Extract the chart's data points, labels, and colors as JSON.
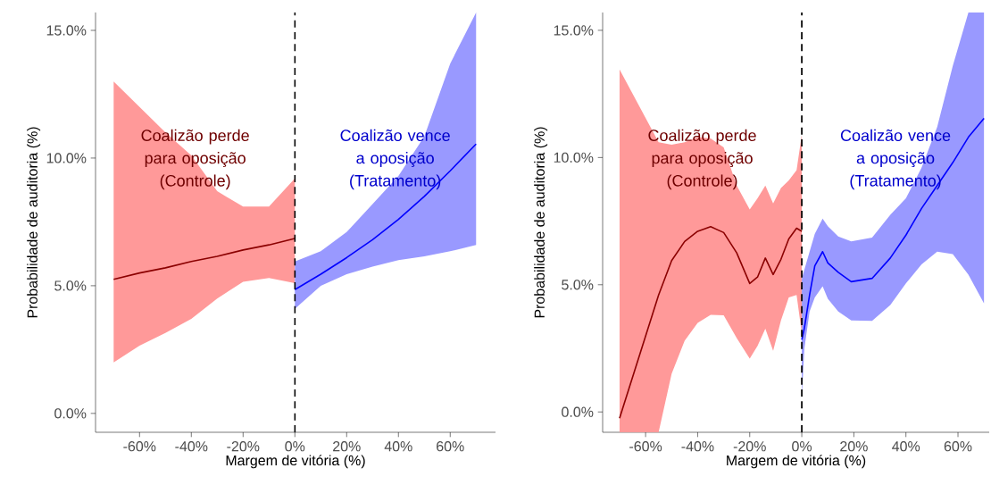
{
  "chart_data": [
    {
      "type": "line",
      "xlabel": "Margem de vitória (%)",
      "ylabel": "Probabilidade de auditoria (%)",
      "xlim": [
        -77,
        77.5
      ],
      "ylim": [
        -0.74,
        15.7
      ],
      "xticks": [
        {
          "value": -60,
          "label": "-60%"
        },
        {
          "value": -40,
          "label": "-40%"
        },
        {
          "value": -20,
          "label": "-20%"
        },
        {
          "value": 0,
          "label": "0%"
        },
        {
          "value": 20,
          "label": "20%"
        },
        {
          "value": 40,
          "label": "40%"
        },
        {
          "value": 60,
          "label": "60%"
        }
      ],
      "yticks": [
        {
          "value": 0,
          "label": "0.0%"
        },
        {
          "value": 5,
          "label": "5.0%"
        },
        {
          "value": 10,
          "label": "10.0%"
        },
        {
          "value": 15,
          "label": "15.0%"
        }
      ],
      "annotations": [
        "Coalizão perde para oposição (Controle)",
        "Coalizão vence a oposição (Tratamento)"
      ],
      "ref_lines": [
        {
          "axis": "x",
          "value": 0,
          "color": "#000000",
          "line_style": "dashed"
        }
      ],
      "series": [
        {
          "color": "#8b0000",
          "x": [
            -70,
            -60,
            -50,
            -40,
            -30,
            -20,
            -10,
            0
          ],
          "values": [
            5.25,
            5.5,
            5.7,
            5.95,
            6.15,
            6.4,
            6.6,
            6.85
          ],
          "upper": [
            13.0,
            12.0,
            11.0,
            10.1,
            8.7,
            8.1,
            8.1,
            9.2
          ],
          "lower": [
            2.0,
            2.65,
            3.15,
            3.7,
            4.5,
            5.15,
            5.3,
            5.1
          ]
        },
        {
          "color": "#0000ff",
          "x": [
            0,
            10,
            20,
            30,
            40,
            50,
            60,
            70
          ],
          "values": [
            4.85,
            5.45,
            6.1,
            6.8,
            7.6,
            8.5,
            9.5,
            10.55
          ],
          "upper": [
            5.95,
            6.35,
            7.1,
            8.2,
            9.3,
            10.85,
            13.7,
            15.7
          ],
          "lower": [
            4.1,
            5.0,
            5.45,
            5.75,
            6.0,
            6.15,
            6.35,
            6.6
          ]
        }
      ]
    },
    {
      "type": "line",
      "xlabel": "Margem de vitória (%)",
      "ylabel": "Probabilidade de auditoria (%)",
      "xlim": [
        -76.5,
        72
      ],
      "ylim": [
        -0.8,
        15.7
      ],
      "xticks": [
        {
          "value": -60,
          "label": "-60%"
        },
        {
          "value": -40,
          "label": "-40%"
        },
        {
          "value": -20,
          "label": "-20%"
        },
        {
          "value": 0,
          "label": "0%"
        },
        {
          "value": 20,
          "label": "20%"
        },
        {
          "value": 40,
          "label": "40%"
        },
        {
          "value": 60,
          "label": "60%"
        }
      ],
      "yticks": [
        {
          "value": 0,
          "label": "0.0%"
        },
        {
          "value": 5,
          "label": "5.0%"
        },
        {
          "value": 10,
          "label": "10.0%"
        },
        {
          "value": 15,
          "label": "15.0%"
        }
      ],
      "annotations": [
        "Coalizão perde para oposição (Controle)",
        "Coalizão vence a oposição (Tratamento)"
      ],
      "ref_lines": [
        {
          "axis": "x",
          "value": 0,
          "color": "#000000",
          "line_style": "dashed"
        }
      ],
      "series": [
        {
          "color": "#8b0000",
          "x": [
            -70,
            -55,
            -50,
            -45,
            -40,
            -35,
            -30,
            -25,
            -20,
            -17,
            -14,
            -11,
            -8,
            -5,
            -2,
            0
          ],
          "values": [
            -0.25,
            4.6,
            5.95,
            6.7,
            7.1,
            7.28,
            7.05,
            6.25,
            5.05,
            5.3,
            6.05,
            5.4,
            6.0,
            6.8,
            7.22,
            7.1
          ],
          "upper": [
            13.46,
            10.6,
            10.5,
            10.6,
            10.8,
            10.75,
            10.4,
            8.9,
            7.96,
            8.4,
            8.9,
            8.2,
            8.8,
            9.1,
            9.5,
            10.9
          ],
          "lower": [
            -0.8,
            -0.8,
            1.5,
            2.8,
            3.5,
            3.82,
            3.8,
            2.9,
            2.1,
            2.6,
            3.27,
            2.4,
            3.6,
            4.5,
            4.6,
            3.1
          ]
        },
        {
          "color": "#0000ff",
          "x": [
            0,
            1,
            3,
            5,
            8,
            10,
            14,
            19,
            27,
            34,
            40,
            46,
            52,
            58,
            64,
            70
          ],
          "values": [
            2.84,
            3.3,
            4.6,
            5.74,
            6.3,
            5.86,
            5.49,
            5.12,
            5.25,
            6.05,
            6.95,
            8.0,
            8.9,
            9.8,
            10.8,
            11.54
          ],
          "upper": [
            5.25,
            5.6,
            6.3,
            7.0,
            7.6,
            7.3,
            6.9,
            6.7,
            6.85,
            7.75,
            8.4,
            9.6,
            11.2,
            13.6,
            15.7,
            15.7
          ],
          "lower": [
            0.55,
            2.5,
            3.95,
            4.5,
            4.94,
            4.45,
            3.95,
            3.6,
            3.58,
            4.2,
            5.05,
            5.8,
            6.3,
            6.2,
            5.4,
            4.26
          ]
        }
      ]
    }
  ]
}
